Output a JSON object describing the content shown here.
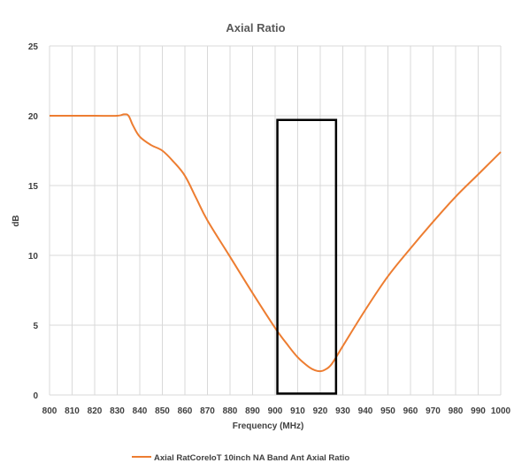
{
  "chart_data": {
    "type": "line",
    "title": "Axial Ratio",
    "xlabel": "Frequency (MHz)",
    "ylabel": "dB",
    "xlim": [
      800,
      1000
    ],
    "ylim": [
      0,
      25
    ],
    "x_ticks": [
      800,
      810,
      820,
      830,
      840,
      850,
      860,
      870,
      880,
      890,
      900,
      910,
      920,
      930,
      940,
      950,
      960,
      970,
      980,
      990,
      1000
    ],
    "y_ticks": [
      0,
      5,
      10,
      15,
      20,
      25
    ],
    "grid": "vertical and horizontal",
    "legend_position": "bottom",
    "colors": {
      "series": "#ED7D31",
      "box": "#000000"
    },
    "series": [
      {
        "name": "Axial RatCoreIoT 10inch NA Band Ant Axial Ratio",
        "x": [
          800,
          810,
          820,
          830,
          833,
          835,
          837,
          840,
          845,
          850,
          855,
          860,
          865,
          870,
          880,
          890,
          900,
          905,
          910,
          915,
          918,
          920,
          922,
          925,
          930,
          940,
          950,
          960,
          970,
          980,
          990,
          995,
          1000
        ],
        "y": [
          20.0,
          20.0,
          20.0,
          20.0,
          20.1,
          20.0,
          19.3,
          18.5,
          17.9,
          17.5,
          16.7,
          15.7,
          14.1,
          12.5,
          9.9,
          7.3,
          4.8,
          3.7,
          2.7,
          2.0,
          1.75,
          1.7,
          1.8,
          2.2,
          3.5,
          6.1,
          8.5,
          10.5,
          12.4,
          14.2,
          15.8,
          16.6,
          17.4
        ]
      }
    ],
    "annotations": [
      {
        "type": "rectangle",
        "x_range": [
          901,
          927
        ],
        "y_range": [
          0.1,
          19.7
        ]
      }
    ]
  }
}
